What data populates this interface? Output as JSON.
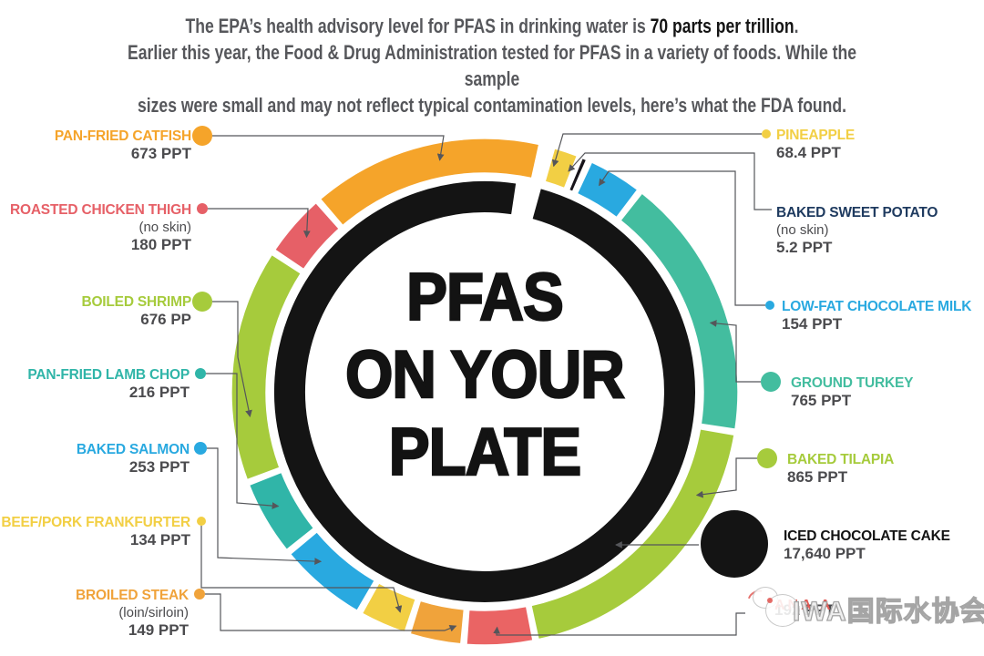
{
  "header": {
    "line1_prefix": "The EPA’s health advisory level for PFAS in drinking water is ",
    "line1_bold": "70 parts per trillion",
    "line1_suffix": ".",
    "line2": "Earlier this year, the Food & Drug Administration tested for PFAS in a variety of foods. While the sample",
    "line3": "sizes were small and may not reflect typical contamination levels, here’s what the FDA found."
  },
  "center": {
    "line1": "PFAS",
    "line2": "ON YOUR",
    "line3": "PLATE"
  },
  "watermark": {
    "text": "IWA国际水协会"
  },
  "items": {
    "pineapple": {
      "label": "PINEAPPLE",
      "sub": "",
      "value_text": "68.4 PPT",
      "value": 68.4,
      "color": "#f2cf44"
    },
    "sweet_potato": {
      "label": "BAKED SWEET POTATO",
      "sub": "(no skin)",
      "value_text": "5.2 PPT",
      "value": 5.2,
      "color": "#17141a",
      "label_color": "#1e3a5f"
    },
    "chocolate_milk": {
      "label": "LOW-FAT CHOCOLATE MILK",
      "sub": "",
      "value_text": "154 PPT",
      "value": 154,
      "color": "#29a9e0"
    },
    "ground_turkey": {
      "label": "GROUND TURKEY",
      "sub": "",
      "value_text": "765 PPT",
      "value": 765,
      "color": "#43bd9f"
    },
    "baked_tilapia": {
      "label": "BAKED TILAPIA",
      "sub": "",
      "value_text": "865 PPT",
      "value": 865,
      "color": "#a6cb3c"
    },
    "obscured": {
      "label": "",
      "sub": "",
      "value_text": "192 PPT",
      "value": 192,
      "color": "#ea6464",
      "fragments": "ANA A",
      "label_obscured_by_watermark": true
    },
    "broiled_steak": {
      "label": "BROILED STEAK",
      "sub": "(loin/sirloin)",
      "value_text": "149 PPT",
      "value": 149,
      "color": "#f0a33b"
    },
    "frankfurter": {
      "label": "BEEF/PORK FRANKFURTER",
      "sub": "",
      "value_text": "134 PPT",
      "value": 134,
      "color": "#f2cf44"
    },
    "baked_salmon": {
      "label": "BAKED SALMON",
      "sub": "",
      "value_text": "253 PPT",
      "value": 253,
      "color": "#29a9e0"
    },
    "lamb_chop": {
      "label": "PAN-FRIED LAMB CHOP",
      "sub": "",
      "value_text": "216 PPT",
      "value": 216,
      "color": "#30b5a8"
    },
    "boiled_shrimp": {
      "label": "BOILED SHRIMP",
      "sub": "",
      "value_text": "676 PP",
      "value": 676,
      "color": "#a6cb3c"
    },
    "chicken_thigh": {
      "label": "ROASTED CHICKEN THIGH",
      "sub": "(no skin)",
      "value_text": "180 PPT",
      "value": 180,
      "color": "#e66067"
    },
    "catfish": {
      "label": "PAN-FRIED CATFISH",
      "sub": "",
      "value_text": "673 PPT",
      "value": 673,
      "color": "#f5a42a"
    },
    "cake": {
      "label": "ICED CHOCOLATE CAKE",
      "sub": "",
      "value_text": "17,640 PPT",
      "value": 17640,
      "color": "#141414",
      "label_color": "#131313"
    }
  },
  "ring_order": [
    "pineapple",
    "sweet_potato",
    "chocolate_milk",
    "ground_turkey",
    "baked_tilapia",
    "obscured",
    "broiled_steak",
    "frankfurter",
    "baked_salmon",
    "lamb_chop",
    "boiled_shrimp",
    "chicken_thigh",
    "catfish"
  ],
  "chart_data": {
    "type": "donut",
    "title": "PFAS ON YOUR PLATE",
    "unit": "parts per trillion (PPT)",
    "annotation": "EPA health advisory level for PFAS in drinking water: 70 parts per trillion",
    "categories": [
      "Pineapple",
      "Baked sweet potato (no skin)",
      "Low-fat chocolate milk",
      "Ground turkey",
      "Baked tilapia",
      "(label obscured by watermark)",
      "Broiled steak (loin/sirloin)",
      "Beef/pork frankfurter",
      "Baked salmon",
      "Pan-fried lamb chop",
      "Boiled shrimp",
      "Roasted chicken thigh (no skin)",
      "Pan-fried catfish",
      "Iced chocolate cake"
    ],
    "values": [
      68.4,
      5.2,
      154,
      765,
      865,
      192,
      149,
      134,
      253,
      216,
      676,
      180,
      673,
      17640
    ],
    "legend_position": "callout labels around ring",
    "notes": "Ring segment arc length and callout dot size scale with PPT value; iced chocolate cake (17,640 PPT) is drawn as the inner black ring and a separate large black dot."
  }
}
